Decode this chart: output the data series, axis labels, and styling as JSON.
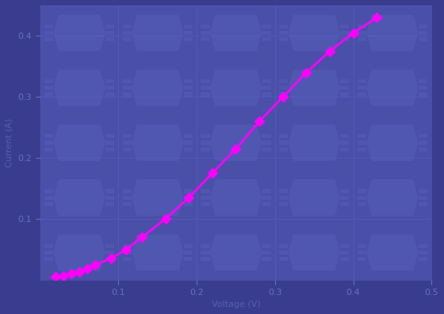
{
  "background_color": "#3a3d8f",
  "plot_bg_color": "#4a4fa8",
  "line_color": "#ff00ff",
  "marker_color": "#ff00ff",
  "marker_style": "D",
  "marker_size": 6,
  "line_width": 2.0,
  "grid_color": "#5560c0",
  "watermark_color": "#5560bb",
  "xlim": [
    0.0,
    0.5
  ],
  "ylim": [
    0.0,
    0.45
  ],
  "x_data": [
    0.02,
    0.03,
    0.04,
    0.05,
    0.06,
    0.07,
    0.09,
    0.11,
    0.13,
    0.16,
    0.19,
    0.22,
    0.25,
    0.28,
    0.31,
    0.34,
    0.37,
    0.4,
    0.43
  ],
  "y_data": [
    0.005,
    0.007,
    0.01,
    0.013,
    0.018,
    0.025,
    0.035,
    0.05,
    0.07,
    0.1,
    0.135,
    0.175,
    0.215,
    0.26,
    0.3,
    0.34,
    0.375,
    0.405,
    0.43
  ],
  "xticks": [
    0.1,
    0.2,
    0.3,
    0.4,
    0.5
  ],
  "yticks": [
    0.1,
    0.2,
    0.3,
    0.4
  ],
  "tick_color": "#6670bb",
  "label_color": "#5560aa",
  "xlabel": "Voltage (V)",
  "ylabel": "Current (A)"
}
